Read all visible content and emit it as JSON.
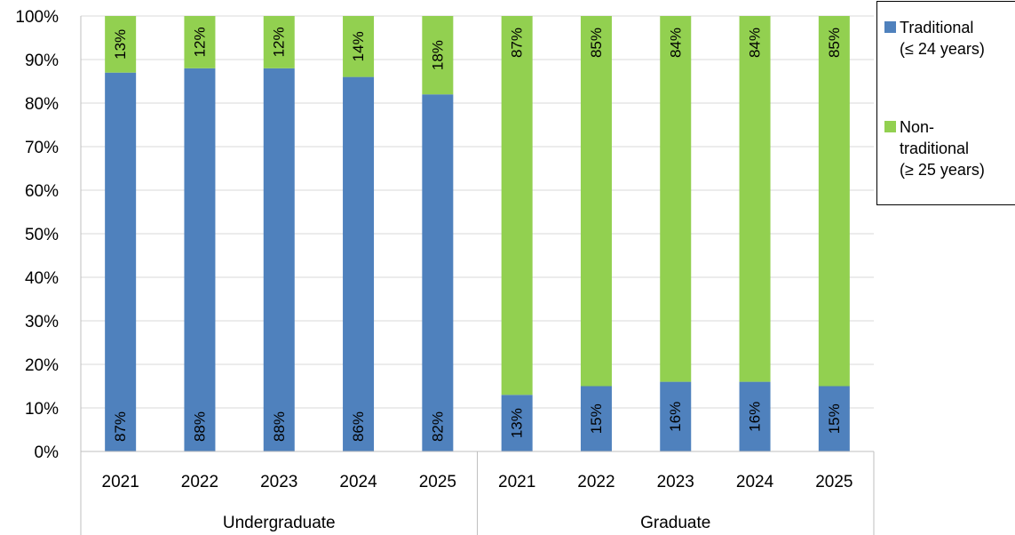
{
  "chart_data": {
    "type": "bar",
    "stacked": true,
    "percent_stacked": true,
    "categories": [
      "2021",
      "2022",
      "2023",
      "2024",
      "2025",
      "2021",
      "2022",
      "2023",
      "2024",
      "2025"
    ],
    "groups": [
      {
        "name": "Undergraduate",
        "categories": [
          "2021",
          "2022",
          "2023",
          "2024",
          "2025"
        ]
      },
      {
        "name": "Graduate",
        "categories": [
          "2021",
          "2022",
          "2023",
          "2024",
          "2025"
        ]
      }
    ],
    "series": [
      {
        "name": "Traditional (≤ 24 years)",
        "legend_lines": [
          "Traditional",
          "(≤ 24 years)"
        ],
        "color": "#4f81bd",
        "values": [
          87,
          88,
          88,
          86,
          82,
          13,
          15,
          16,
          16,
          15
        ],
        "labels": [
          "87%",
          "88%",
          "88%",
          "86%",
          "82%",
          "13%",
          "15%",
          "16%",
          "16%",
          "15%"
        ]
      },
      {
        "name": "Non-traditional (≥ 25 years)",
        "legend_lines": [
          "Non-",
          "traditional",
          "(≥ 25 years)"
        ],
        "color": "#92d050",
        "values": [
          13,
          12,
          12,
          14,
          18,
          87,
          85,
          84,
          84,
          85
        ],
        "labels": [
          "13%",
          "12%",
          "12%",
          "14%",
          "18%",
          "87%",
          "85%",
          "84%",
          "84%",
          "85%"
        ]
      }
    ],
    "y_ticks": [
      "0%",
      "10%",
      "20%",
      "30%",
      "40%",
      "50%",
      "60%",
      "70%",
      "80%",
      "90%",
      "100%"
    ],
    "ylim": [
      0,
      100
    ],
    "grid": true,
    "legend_position": "top-right",
    "title": "",
    "xlabel": "",
    "ylabel": ""
  }
}
